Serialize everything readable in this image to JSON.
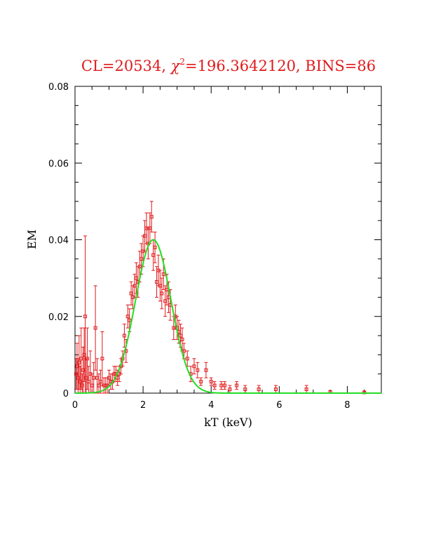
{
  "chart_data": {
    "type": "scatter",
    "title_prefix": "CL=20534, ",
    "title_chi": "χ",
    "title_sup": "2",
    "title_suffix": "=196.3642120, BINS=86",
    "xlabel": "kT (keV)",
    "ylabel": "EM",
    "xlim": [
      0,
      9
    ],
    "ylim": [
      0,
      0.08
    ],
    "xticks": [
      0,
      2,
      4,
      6,
      8
    ],
    "xtick_labels": [
      "0",
      "2",
      "4",
      "6",
      "8"
    ],
    "yticks": [
      0,
      0.02,
      0.04,
      0.06,
      0.08
    ],
    "ytick_labels": [
      "0",
      "0.02",
      "0.04",
      "0.06",
      "0.08"
    ],
    "grid": false,
    "colors": {
      "data": "#e0191b",
      "model": "#22dd22",
      "title": "#e0191b",
      "axes": "#000000"
    },
    "series": [
      {
        "type": "errorbar",
        "points": [
          {
            "x": 0.03,
            "y": 0.005,
            "err": 0.004
          },
          {
            "x": 0.06,
            "y": 0.007,
            "err": 0.006
          },
          {
            "x": 0.09,
            "y": 0.004,
            "err": 0.005
          },
          {
            "x": 0.12,
            "y": 0.008,
            "err": 0.007
          },
          {
            "x": 0.15,
            "y": 0.003,
            "err": 0.004
          },
          {
            "x": 0.18,
            "y": 0.009,
            "err": 0.008
          },
          {
            "x": 0.21,
            "y": 0.002,
            "err": 0.003
          },
          {
            "x": 0.24,
            "y": 0.006,
            "err": 0.006
          },
          {
            "x": 0.27,
            "y": 0.01,
            "err": 0.007
          },
          {
            "x": 0.3,
            "y": 0.02,
            "err": 0.021
          },
          {
            "x": 0.33,
            "y": 0.004,
            "err": 0.005
          },
          {
            "x": 0.36,
            "y": 0.009,
            "err": 0.008
          },
          {
            "x": 0.4,
            "y": 0.003,
            "err": 0.004
          },
          {
            "x": 0.45,
            "y": 0.005,
            "err": 0.006
          },
          {
            "x": 0.5,
            "y": 0.002,
            "err": 0.003
          },
          {
            "x": 0.55,
            "y": 0.004,
            "err": 0.004
          },
          {
            "x": 0.6,
            "y": 0.017,
            "err": 0.011
          },
          {
            "x": 0.65,
            "y": 0.004,
            "err": 0.005
          },
          {
            "x": 0.7,
            "y": 0.002,
            "err": 0.003
          },
          {
            "x": 0.75,
            "y": 0.003,
            "err": 0.003
          },
          {
            "x": 0.8,
            "y": 0.009,
            "err": 0.007
          },
          {
            "x": 0.85,
            "y": 0.002,
            "err": 0.002
          },
          {
            "x": 0.9,
            "y": 0.002,
            "err": 0.002
          },
          {
            "x": 0.95,
            "y": 0.002,
            "err": 0.002
          },
          {
            "x": 1.0,
            "y": 0.004,
            "err": 0.002
          },
          {
            "x": 1.05,
            "y": 0.003,
            "err": 0.002
          },
          {
            "x": 1.1,
            "y": 0.003,
            "err": 0.002
          },
          {
            "x": 1.15,
            "y": 0.005,
            "err": 0.002
          },
          {
            "x": 1.2,
            "y": 0.005,
            "err": 0.002
          },
          {
            "x": 1.25,
            "y": 0.004,
            "err": 0.002
          },
          {
            "x": 1.3,
            "y": 0.005,
            "err": 0.002
          },
          {
            "x": 1.35,
            "y": 0.007,
            "err": 0.002
          },
          {
            "x": 1.4,
            "y": 0.009,
            "err": 0.002
          },
          {
            "x": 1.45,
            "y": 0.015,
            "err": 0.003
          },
          {
            "x": 1.5,
            "y": 0.011,
            "err": 0.003
          },
          {
            "x": 1.55,
            "y": 0.02,
            "err": 0.003
          },
          {
            "x": 1.6,
            "y": 0.019,
            "err": 0.003
          },
          {
            "x": 1.65,
            "y": 0.026,
            "err": 0.003
          },
          {
            "x": 1.7,
            "y": 0.025,
            "err": 0.003
          },
          {
            "x": 1.75,
            "y": 0.028,
            "err": 0.003
          },
          {
            "x": 1.8,
            "y": 0.03,
            "err": 0.004
          },
          {
            "x": 1.85,
            "y": 0.029,
            "err": 0.004
          },
          {
            "x": 1.9,
            "y": 0.033,
            "err": 0.004
          },
          {
            "x": 1.95,
            "y": 0.035,
            "err": 0.004
          },
          {
            "x": 2.0,
            "y": 0.037,
            "err": 0.004
          },
          {
            "x": 2.05,
            "y": 0.041,
            "err": 0.004
          },
          {
            "x": 2.1,
            "y": 0.043,
            "err": 0.004
          },
          {
            "x": 2.15,
            "y": 0.039,
            "err": 0.004
          },
          {
            "x": 2.2,
            "y": 0.043,
            "err": 0.004
          },
          {
            "x": 2.25,
            "y": 0.046,
            "err": 0.004
          },
          {
            "x": 2.3,
            "y": 0.036,
            "err": 0.004
          },
          {
            "x": 2.35,
            "y": 0.038,
            "err": 0.004
          },
          {
            "x": 2.4,
            "y": 0.029,
            "err": 0.004
          },
          {
            "x": 2.45,
            "y": 0.032,
            "err": 0.004
          },
          {
            "x": 2.5,
            "y": 0.028,
            "err": 0.004
          },
          {
            "x": 2.55,
            "y": 0.026,
            "err": 0.004
          },
          {
            "x": 2.6,
            "y": 0.031,
            "err": 0.004
          },
          {
            "x": 2.65,
            "y": 0.024,
            "err": 0.004
          },
          {
            "x": 2.7,
            "y": 0.027,
            "err": 0.004
          },
          {
            "x": 2.75,
            "y": 0.025,
            "err": 0.004
          },
          {
            "x": 2.8,
            "y": 0.023,
            "err": 0.004
          },
          {
            "x": 2.9,
            "y": 0.017,
            "err": 0.003
          },
          {
            "x": 2.95,
            "y": 0.02,
            "err": 0.003
          },
          {
            "x": 3.0,
            "y": 0.017,
            "err": 0.003
          },
          {
            "x": 3.05,
            "y": 0.016,
            "err": 0.003
          },
          {
            "x": 3.1,
            "y": 0.015,
            "err": 0.003
          },
          {
            "x": 3.15,
            "y": 0.014,
            "err": 0.003
          },
          {
            "x": 3.2,
            "y": 0.011,
            "err": 0.002
          },
          {
            "x": 3.3,
            "y": 0.009,
            "err": 0.002
          },
          {
            "x": 3.4,
            "y": 0.005,
            "err": 0.002
          },
          {
            "x": 3.5,
            "y": 0.007,
            "err": 0.002
          },
          {
            "x": 3.6,
            "y": 0.006,
            "err": 0.002
          },
          {
            "x": 3.7,
            "y": 0.003,
            "err": 0.001
          },
          {
            "x": 3.85,
            "y": 0.006,
            "err": 0.002
          },
          {
            "x": 4.0,
            "y": 0.003,
            "err": 0.001
          },
          {
            "x": 4.1,
            "y": 0.002,
            "err": 0.001
          },
          {
            "x": 4.3,
            "y": 0.002,
            "err": 0.001
          },
          {
            "x": 4.4,
            "y": 0.002,
            "err": 0.001
          },
          {
            "x": 4.55,
            "y": 0.001,
            "err": 0.001
          },
          {
            "x": 4.75,
            "y": 0.002,
            "err": 0.001
          },
          {
            "x": 5.0,
            "y": 0.001,
            "err": 0.001
          },
          {
            "x": 5.4,
            "y": 0.001,
            "err": 0.001
          },
          {
            "x": 5.9,
            "y": 0.001,
            "err": 0.001
          },
          {
            "x": 6.8,
            "y": 0.001,
            "err": 0.001
          },
          {
            "x": 7.5,
            "y": 0.0003,
            "err": 0.0003
          },
          {
            "x": 8.5,
            "y": 0.0002,
            "err": 0.0002
          }
        ]
      },
      {
        "type": "gaussian",
        "peak": 0.04,
        "center": 2.3,
        "sigma": 0.52,
        "x_range": [
          0,
          9
        ]
      }
    ]
  }
}
